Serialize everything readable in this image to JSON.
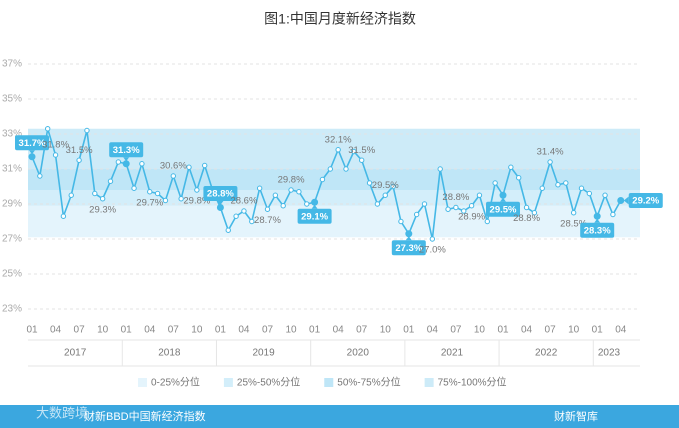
{
  "chart_data": {
    "type": "line",
    "title": "图1:中国月度新经济指数",
    "categories": [
      "01",
      null,
      null,
      "04",
      null,
      null,
      "07",
      null,
      null,
      "10",
      null,
      null,
      "01",
      null,
      null,
      "04",
      null,
      null,
      "07",
      null,
      null,
      "10",
      null,
      null,
      "01",
      null,
      null,
      "04",
      null,
      null,
      "07",
      null,
      null,
      "10",
      null,
      null,
      "01",
      null,
      null,
      "04",
      null,
      null,
      "07",
      null,
      null,
      "10",
      null,
      null,
      "01",
      null,
      null,
      "04",
      null,
      null,
      "07",
      null,
      null,
      "10",
      null,
      null,
      "01",
      null,
      null,
      "04",
      null,
      null,
      "07",
      null,
      null,
      "10",
      null,
      null,
      "01",
      null,
      null,
      "04"
    ],
    "years": [
      "2017",
      "2018",
      "2019",
      "2020",
      "2021",
      "2022",
      "2023"
    ],
    "series": [
      {
        "name": "中国月度新经济指数",
        "color": "#45b8e6",
        "values": [
          31.7,
          30.6,
          33.3,
          31.8,
          28.3,
          29.5,
          31.5,
          33.2,
          29.6,
          29.3,
          30.3,
          31.4,
          31.3,
          29.9,
          31.3,
          29.7,
          29.6,
          29.2,
          30.6,
          29.3,
          31.1,
          29.8,
          31.2,
          29.8,
          28.8,
          27.5,
          28.3,
          28.6,
          28.0,
          29.9,
          28.7,
          29.5,
          28.9,
          29.8,
          29.7,
          29.0,
          29.1,
          30.4,
          31.0,
          32.1,
          31.0,
          32.0,
          31.5,
          30.2,
          29.0,
          29.5,
          30.0,
          28.0,
          27.3,
          28.4,
          29.0,
          27.0,
          31.0,
          28.7,
          28.8,
          28.6,
          28.9,
          29.5,
          28.0,
          30.2,
          29.5,
          31.1,
          30.5,
          28.8,
          28.5,
          29.9,
          31.4,
          30.1,
          30.2,
          28.5,
          29.9,
          29.6,
          28.3,
          29.5,
          28.4,
          29.2
        ],
        "value_labels": [
          "31.7%",
          null,
          null,
          "31.8%",
          null,
          null,
          "31.5%",
          null,
          null,
          "29.3%",
          null,
          null,
          "31.3%",
          null,
          null,
          "29.7%",
          null,
          null,
          "30.6%",
          null,
          null,
          "29.8%",
          null,
          null,
          "28.8%",
          null,
          null,
          "28.6%",
          null,
          null,
          "28.7%",
          null,
          null,
          "29.8%",
          null,
          null,
          "29.1%",
          null,
          null,
          "32.1%",
          null,
          null,
          "31.5%",
          null,
          null,
          "29.5%",
          null,
          null,
          "27.3%",
          null,
          null,
          "27.0%",
          null,
          null,
          "28.8%",
          null,
          "28.9%",
          null,
          null,
          null,
          "29.5%",
          null,
          null,
          "28.8%",
          null,
          null,
          "31.4%",
          null,
          null,
          "28.5%",
          null,
          null,
          "28.3%",
          null,
          null,
          "29.2%"
        ]
      }
    ],
    "bands": [
      {
        "name": "0-25%分位",
        "range": [
          27.1,
          28.9
        ],
        "color": "#e4f4fc"
      },
      {
        "name": "25%-50%分位",
        "range": [
          28.9,
          29.8
        ],
        "color": "#d3eefa"
      },
      {
        "name": "50%-75%分位",
        "range": [
          29.8,
          31.0
        ],
        "color": "#bfe6f7"
      },
      {
        "name": "75%-100%分位",
        "range": [
          31.0,
          33.3
        ],
        "color": "#cdebf8"
      }
    ],
    "ylim": [
      23,
      37
    ],
    "yticks": [
      {
        "value": 23,
        "label": "23%"
      },
      {
        "value": 25,
        "label": "25%"
      },
      {
        "value": 27,
        "label": "27%"
      },
      {
        "value": 29,
        "label": "29%"
      },
      {
        "value": 31,
        "label": "31%"
      },
      {
        "value": 33,
        "label": "33%"
      },
      {
        "value": 35,
        "label": "35%"
      },
      {
        "value": 37,
        "label": "37%"
      }
    ],
    "grid": true,
    "source": "财新BBD中国新经济指数",
    "brand": "财新智库",
    "watermark": "大数跨境"
  }
}
